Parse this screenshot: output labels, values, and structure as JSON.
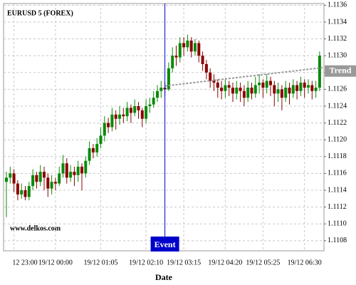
{
  "chart_data": {
    "type": "candlestick",
    "title": "EURUSD 5 (FOREX)",
    "x_label": "Date",
    "watermark": "www.delkos.com",
    "categories": [
      null,
      null,
      "12 23:00",
      null,
      null,
      null,
      null,
      null,
      null,
      null,
      null,
      null,
      null,
      "19/12 00:00",
      null,
      null,
      null,
      null,
      null,
      null,
      null,
      null,
      null,
      null,
      null,
      "19/12 01:05",
      null,
      null,
      null,
      null,
      null,
      null,
      null,
      null,
      null,
      null,
      null,
      "19/12 02:10",
      null,
      null,
      null,
      null,
      null,
      null,
      null,
      null,
      null,
      "19/12 03:15",
      null,
      null,
      null,
      null,
      null,
      null,
      null,
      null,
      null,
      null,
      "19/12 04:20",
      null,
      null,
      null,
      null,
      null,
      null,
      null,
      null,
      null,
      "19/12 05:25",
      null,
      null,
      null,
      null,
      null,
      null,
      null,
      null,
      null,
      null,
      "19/12 06:30",
      null,
      null,
      null,
      null
    ],
    "open": [
      1.1115,
      1.11155,
      1.1116,
      1.11148,
      1.11135,
      1.1114,
      1.11132,
      1.11145,
      1.11158,
      1.1115,
      1.11162,
      1.11155,
      1.11142,
      1.1115,
      1.11148,
      1.1116,
      1.11172,
      1.11155,
      1.11162,
      1.11158,
      1.11168,
      1.1116,
      1.11175,
      1.1119,
      1.11185,
      1.11195,
      1.11205,
      1.1122,
      1.11215,
      1.1123,
      1.11225,
      1.1123,
      1.11228,
      1.11238,
      1.11232,
      1.1124,
      1.11235,
      1.11225,
      1.1124,
      1.11242,
      1.1125,
      1.11258,
      1.11262,
      1.1126,
      1.11285,
      1.113,
      1.11298,
      1.11315,
      1.1131,
      1.11318,
      1.11305,
      1.11315,
      1.113,
      1.1129,
      1.1128,
      1.1127,
      1.11268,
      1.11262,
      1.11258,
      1.11265,
      1.11262,
      1.11255,
      1.11262,
      1.11258,
      1.1125,
      1.11262,
      1.11255,
      1.11265,
      1.11268,
      1.11262,
      1.1127,
      1.11265,
      1.11255,
      1.1126,
      1.1125,
      1.11262,
      1.11255,
      1.11265,
      1.11258,
      1.11268,
      1.11262,
      1.11265,
      1.11258,
      1.11262
    ],
    "high": [
      1.11162,
      1.11168,
      1.11165,
      1.11152,
      1.11148,
      1.11145,
      1.1115,
      1.11165,
      1.11162,
      1.1117,
      1.11168,
      1.1116,
      1.11158,
      1.11155,
      1.11168,
      1.11182,
      1.11178,
      1.1117,
      1.11168,
      1.11175,
      1.11172,
      1.1118,
      1.11198,
      1.11195,
      1.11202,
      1.11215,
      1.11228,
      1.11226,
      1.11238,
      1.11235,
      1.1124,
      1.11238,
      1.11245,
      1.11242,
      1.11248,
      1.11245,
      1.11238,
      1.11248,
      1.1125,
      1.11258,
      1.11265,
      1.1127,
      1.11268,
      1.11292,
      1.1131,
      1.11312,
      1.11322,
      1.11322,
      1.11325,
      1.11322,
      1.1132,
      1.11318,
      1.11305,
      1.11295,
      1.11285,
      1.11278,
      1.11272,
      1.1127,
      1.11272,
      1.1127,
      1.11268,
      1.1127,
      1.11268,
      1.11265,
      1.1127,
      1.11268,
      1.11275,
      1.11278,
      1.11272,
      1.11278,
      1.11275,
      1.1127,
      1.11268,
      1.11265,
      1.1127,
      1.11268,
      1.11272,
      1.1127,
      1.11275,
      1.11272,
      1.11272,
      1.1127,
      1.1127,
      1.11305
    ],
    "low": [
      1.11108,
      1.11148,
      1.11138,
      1.11128,
      1.1113,
      1.11128,
      1.11128,
      1.1114,
      1.11142,
      1.11145,
      1.1114,
      1.11132,
      1.11135,
      1.1114,
      1.11145,
      1.11155,
      1.11148,
      1.1115,
      1.11145,
      1.1115,
      1.1114,
      1.11155,
      1.1117,
      1.11178,
      1.1118,
      1.1119,
      1.11198,
      1.11208,
      1.1121,
      1.11212,
      1.11218,
      1.1122,
      1.11222,
      1.1122,
      1.11228,
      1.11225,
      1.11215,
      1.1122,
      1.11232,
      1.11238,
      1.11245,
      1.1125,
      1.11252,
      1.11258,
      1.1128,
      1.11288,
      1.11292,
      1.113,
      1.11305,
      1.11298,
      1.113,
      1.11292,
      1.11282,
      1.11272,
      1.11262,
      1.11258,
      1.1125,
      1.11248,
      1.1125,
      1.11252,
      1.11245,
      1.11248,
      1.11245,
      1.1124,
      1.11245,
      1.11248,
      1.1125,
      1.11255,
      1.1125,
      1.11255,
      1.11252,
      1.1124,
      1.11245,
      1.11235,
      1.11245,
      1.11242,
      1.1125,
      1.11248,
      1.11252,
      1.1125,
      1.11255,
      1.11248,
      1.1125,
      1.11258
    ],
    "close": [
      1.11155,
      1.1116,
      1.11148,
      1.11135,
      1.1114,
      1.11132,
      1.11145,
      1.11158,
      1.1115,
      1.11162,
      1.11155,
      1.11142,
      1.1115,
      1.11148,
      1.1116,
      1.11172,
      1.11155,
      1.11162,
      1.11158,
      1.11168,
      1.1116,
      1.11175,
      1.1119,
      1.11185,
      1.11195,
      1.11205,
      1.1122,
      1.11215,
      1.1123,
      1.11225,
      1.1123,
      1.11228,
      1.11238,
      1.11232,
      1.1124,
      1.11235,
      1.11225,
      1.1124,
      1.11242,
      1.1125,
      1.11258,
      1.11262,
      1.1126,
      1.11285,
      1.113,
      1.11298,
      1.11315,
      1.1131,
      1.11318,
      1.11305,
      1.11315,
      1.113,
      1.1129,
      1.1128,
      1.1127,
      1.11268,
      1.11262,
      1.11258,
      1.11265,
      1.11262,
      1.11255,
      1.11262,
      1.11258,
      1.1125,
      1.11262,
      1.11255,
      1.11265,
      1.11268,
      1.11262,
      1.1127,
      1.11265,
      1.11255,
      1.1126,
      1.1125,
      1.11262,
      1.11255,
      1.11265,
      1.11258,
      1.11268,
      1.11262,
      1.11265,
      1.11258,
      1.11262,
      1.113
    ],
    "up_color": "#0a8a0a",
    "down_color": "#8b0000",
    "event": {
      "label": "Event",
      "color": "#0000cc"
    },
    "trend": {
      "label": "Trend",
      "values": [
        1.11264,
        1.11286
      ],
      "color": "#999999"
    },
    "ylim": [
      1.11068,
      1.11362
    ],
    "yticks": [
      1.1108,
      {
        "value": 1.111,
        "label": "1.1110"
      },
      1.1112,
      1.1114,
      1.1116,
      1.1118,
      {
        "value": 1.112,
        "label": "1.1120"
      },
      1.1122,
      1.1124,
      1.1126,
      1.1128,
      {
        "value": 1.113,
        "label": "1.1130"
      },
      1.1132,
      1.1134,
      1.1136
    ],
    "grid": true
  }
}
